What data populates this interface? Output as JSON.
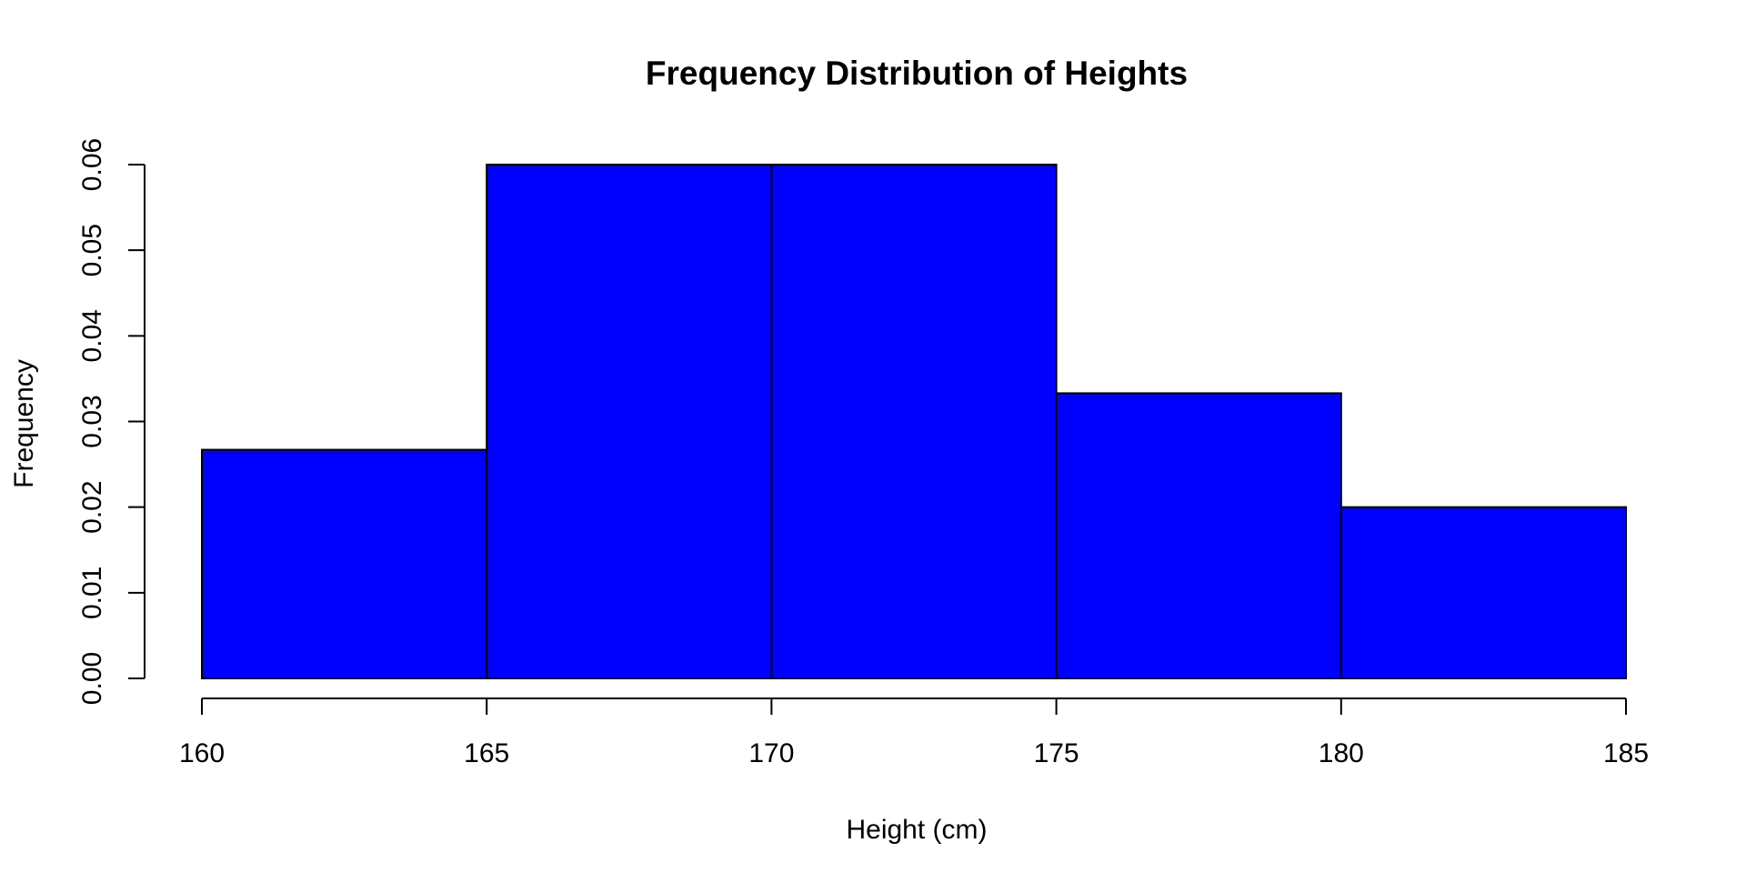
{
  "chart_data": {
    "type": "bar",
    "title": "Frequency Distribution of Heights",
    "xlabel": "Height (cm)",
    "ylabel": "Frequency",
    "bins": [
      {
        "from": 160,
        "to": 165,
        "value": 0.0267
      },
      {
        "from": 165,
        "to": 170,
        "value": 0.06
      },
      {
        "from": 170,
        "to": 175,
        "value": 0.06
      },
      {
        "from": 175,
        "to": 180,
        "value": 0.0333
      },
      {
        "from": 180,
        "to": 185,
        "value": 0.02
      }
    ],
    "xlim": [
      160,
      185
    ],
    "ylim": [
      0,
      0.06
    ],
    "x_ticks": [
      "160",
      "165",
      "170",
      "175",
      "180",
      "185"
    ],
    "y_ticks": [
      "0.00",
      "0.01",
      "0.02",
      "0.03",
      "0.04",
      "0.05",
      "0.06"
    ],
    "grid": false,
    "bar_color": "#0000ff",
    "border_color": "#000000"
  }
}
